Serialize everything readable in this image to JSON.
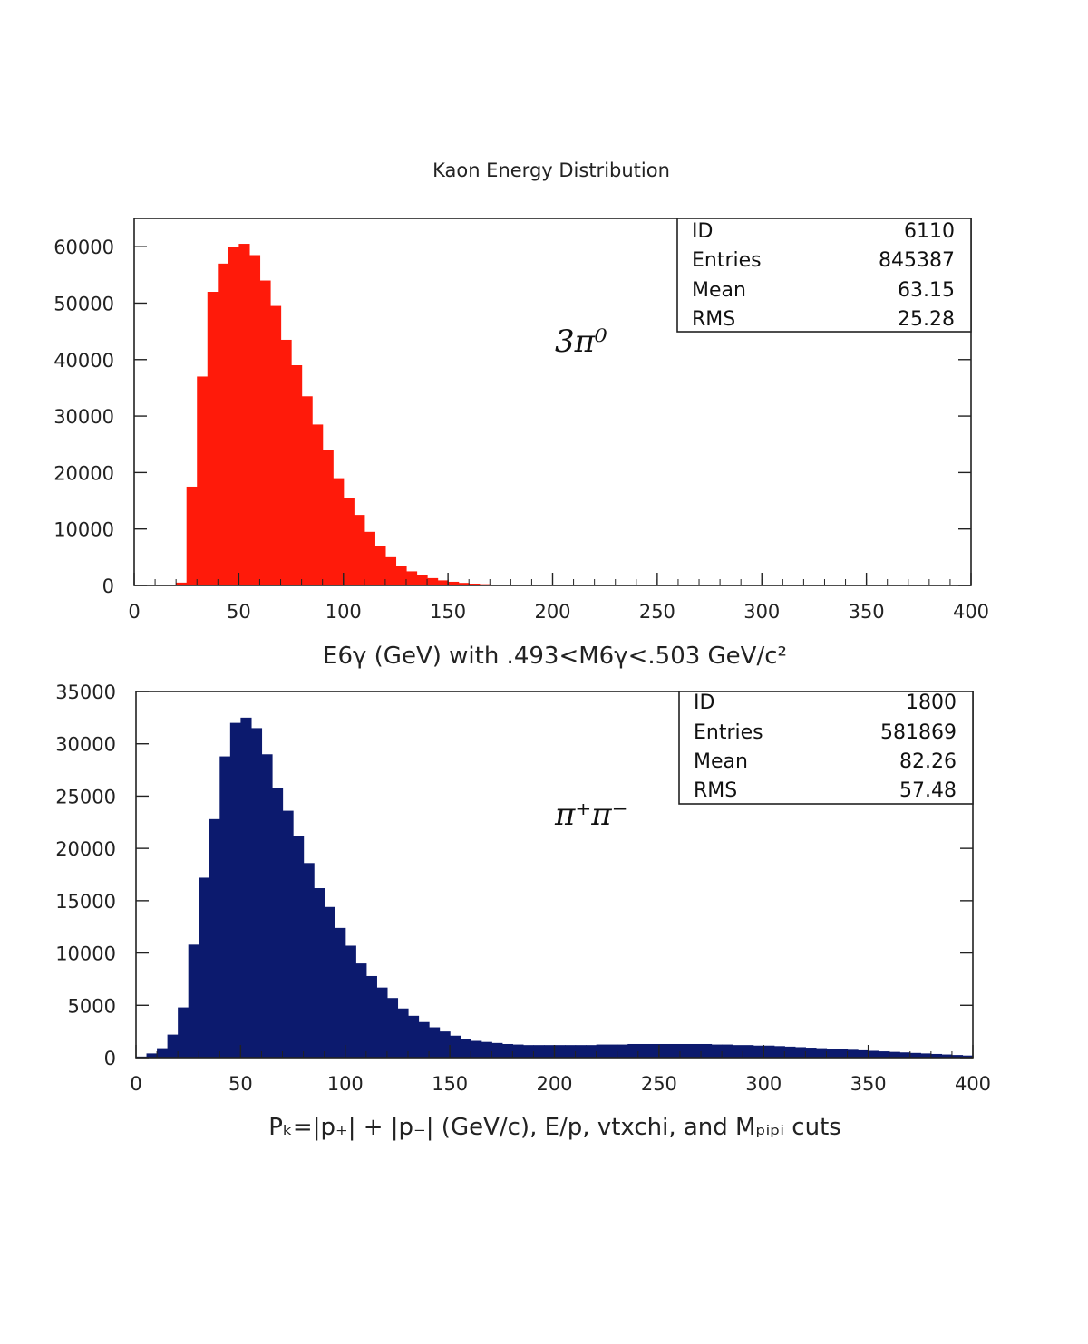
{
  "title": "Kaon Energy Distribution",
  "chart_data": [
    {
      "type": "bar",
      "histogram": true,
      "color": "#ff1a0a",
      "xlabel": "E6γ (GeV) with .493<M6γ<.503 GeV/c²",
      "ylabel": "",
      "xlim": [
        0,
        400
      ],
      "ylim": [
        0,
        65000
      ],
      "x_ticks": [
        "0",
        "50",
        "100",
        "150",
        "200",
        "250",
        "300",
        "350",
        "400"
      ],
      "y_ticks": [
        "0",
        "10000",
        "20000",
        "30000",
        "40000",
        "50000",
        "60000"
      ],
      "annotation": "3π⁰",
      "stats": [
        {
          "label": "ID",
          "value": "6110"
        },
        {
          "label": "Entries",
          "value": "845387"
        },
        {
          "label": "Mean",
          "value": "63.15"
        },
        {
          "label": "RMS",
          "value": "25.28"
        }
      ],
      "bin_width": 5,
      "bins_start": [
        20,
        25,
        30,
        35,
        40,
        45,
        50,
        55,
        60,
        65,
        70,
        75,
        80,
        85,
        90,
        95,
        100,
        105,
        110,
        115,
        120,
        125,
        130,
        135,
        140,
        145,
        150,
        155,
        160,
        165,
        170,
        175,
        180,
        185,
        190,
        195,
        200,
        205,
        210
      ],
      "values": [
        500,
        17500,
        37000,
        52000,
        57000,
        60000,
        60500,
        58500,
        54000,
        49500,
        43500,
        39000,
        33500,
        28500,
        24000,
        19000,
        15500,
        12500,
        9500,
        7000,
        5000,
        3500,
        2500,
        1800,
        1300,
        900,
        650,
        450,
        320,
        220,
        150,
        100,
        70,
        50,
        35,
        25,
        15,
        10,
        5
      ]
    },
    {
      "type": "bar",
      "histogram": true,
      "color": "#0c1a6e",
      "xlabel": "Pₖ=|p₊| + |p₋| (GeV/c), E/p, vtxchi, and Mₚᵢₚᵢ cuts",
      "ylabel": "",
      "xlim": [
        0,
        400
      ],
      "ylim": [
        0,
        35000
      ],
      "x_ticks": [
        "0",
        "50",
        "100",
        "150",
        "200",
        "250",
        "300",
        "350",
        "400"
      ],
      "y_ticks": [
        "0",
        "5000",
        "10000",
        "15000",
        "20000",
        "25000",
        "30000",
        "35000"
      ],
      "annotation": "π⁺π⁻",
      "stats": [
        {
          "label": "ID",
          "value": "1800"
        },
        {
          "label": "Entries",
          "value": "581869"
        },
        {
          "label": "Mean",
          "value": "82.26"
        },
        {
          "label": "RMS",
          "value": "57.48"
        }
      ],
      "bin_width": 5,
      "bins_start": [
        0,
        5,
        10,
        15,
        20,
        25,
        30,
        35,
        40,
        45,
        50,
        55,
        60,
        65,
        70,
        75,
        80,
        85,
        90,
        95,
        100,
        105,
        110,
        115,
        120,
        125,
        130,
        135,
        140,
        145,
        150,
        155,
        160,
        165,
        170,
        175,
        180,
        185,
        190,
        195,
        200,
        205,
        210,
        215,
        220,
        225,
        230,
        235,
        240,
        245,
        250,
        255,
        260,
        265,
        270,
        275,
        280,
        285,
        290,
        295,
        300,
        305,
        310,
        315,
        320,
        325,
        330,
        335,
        340,
        345,
        350,
        355,
        360,
        365,
        370,
        375,
        380,
        385,
        390,
        395
      ],
      "values": [
        100,
        400,
        900,
        2200,
        4800,
        10800,
        17200,
        22800,
        28800,
        32000,
        32500,
        31500,
        29000,
        25800,
        23600,
        21200,
        18600,
        16200,
        14400,
        12400,
        10700,
        9000,
        7800,
        6700,
        5700,
        4700,
        4000,
        3400,
        2900,
        2500,
        2100,
        1800,
        1600,
        1500,
        1400,
        1300,
        1250,
        1200,
        1200,
        1200,
        1200,
        1200,
        1200,
        1200,
        1250,
        1250,
        1250,
        1300,
        1300,
        1300,
        1300,
        1300,
        1300,
        1300,
        1300,
        1250,
        1250,
        1200,
        1200,
        1150,
        1150,
        1100,
        1050,
        1000,
        950,
        900,
        850,
        800,
        750,
        700,
        650,
        600,
        550,
        500,
        450,
        400,
        350,
        300,
        250,
        200
      ]
    }
  ]
}
